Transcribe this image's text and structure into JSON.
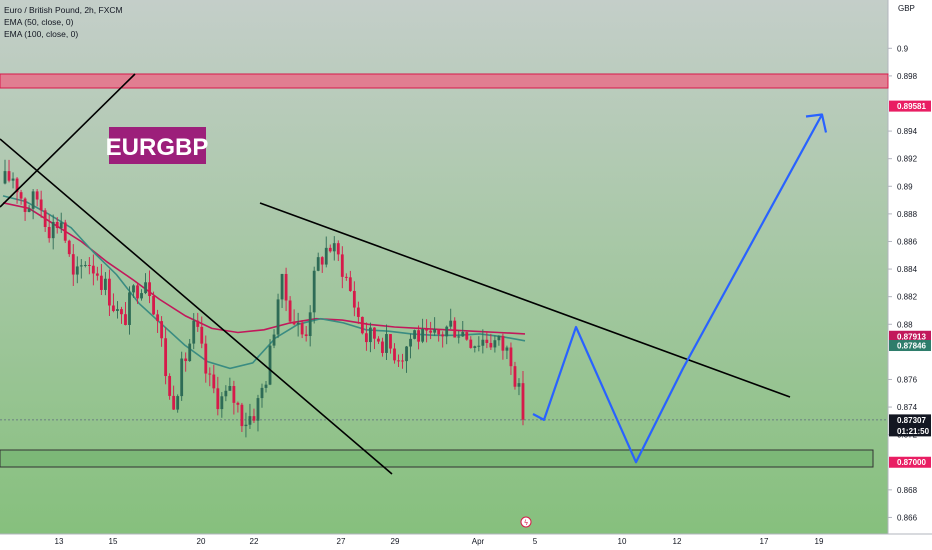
{
  "header": {
    "symbol": "Euro / British Pound, 2h, FXCM",
    "ema50": "EMA (50, close, 0)",
    "ema100": "EMA (100, close, 0)"
  },
  "watermark": "EURGBP",
  "colors": {
    "background_top": "#c4cec9",
    "background_bottom": "#86c07d",
    "up": "#2e6b56",
    "down": "#d61a4a",
    "ema50": "#3a8c82",
    "ema100": "#c2185b",
    "resistance_zone": "#e8708a",
    "projection": "#2962ff",
    "trendline": "#000000",
    "label_bg": "#9c1f7a"
  },
  "chart_data": {
    "type": "candlestick",
    "title": "Euro / British Pound, 2h, FXCM",
    "currency": "GBP",
    "ylim": [
      0.8648,
      0.9035
    ],
    "y_ticks": [
      0.9,
      0.898,
      0.894,
      0.892,
      0.89,
      0.888,
      0.886,
      0.884,
      0.882,
      0.88,
      0.876,
      0.874,
      0.872,
      0.868,
      0.866
    ],
    "x_ticks": [
      "13",
      "15",
      "20",
      "22",
      "27",
      "29",
      "Apr",
      "5",
      "10",
      "12",
      "17",
      "19"
    ],
    "price_path": [
      0.8902,
      0.8908,
      0.8885,
      0.8892,
      0.887,
      0.8876,
      0.883,
      0.8848,
      0.8838,
      0.882,
      0.88,
      0.8825,
      0.8836,
      0.88,
      0.874,
      0.877,
      0.88,
      0.876,
      0.8745,
      0.875,
      0.873,
      0.8738,
      0.8768,
      0.8832,
      0.8805,
      0.879,
      0.8842,
      0.8858,
      0.8845,
      0.8818,
      0.879,
      0.8792,
      0.8783,
      0.8778,
      0.8795,
      0.8787,
      0.8791,
      0.88,
      0.8795,
      0.8788,
      0.879,
      0.8786,
      0.8778,
      0.8735
    ],
    "ema50": [
      0.8893,
      0.8889,
      0.888,
      0.887,
      0.8852,
      0.8836,
      0.8815,
      0.88,
      0.8785,
      0.8773,
      0.8768,
      0.8772,
      0.879,
      0.88,
      0.8804,
      0.8801,
      0.8796,
      0.8795,
      0.8793,
      0.8792,
      0.8792,
      0.8793,
      0.8791,
      0.8788
    ],
    "ema100": [
      0.8888,
      0.8884,
      0.8872,
      0.886,
      0.8845,
      0.8832,
      0.8818,
      0.8806,
      0.8797,
      0.8794,
      0.8796,
      0.8801,
      0.8804,
      0.8803,
      0.88,
      0.8798,
      0.8797,
      0.8796,
      0.8795,
      0.8794,
      0.8793
    ],
    "levels": [
      {
        "price": 0.89581,
        "label": "0.89581",
        "color": "#e91e63",
        "kind": "resistance"
      },
      {
        "price": 0.87913,
        "label": "0.87913",
        "color": "#c2185b",
        "kind": "ema100"
      },
      {
        "price": 0.87846,
        "label": "0.87846",
        "color": "#2e7d6b",
        "kind": "ema50"
      },
      {
        "price": 0.87307,
        "label": "0.87307",
        "sublabel": "01:21:50",
        "color": "#131722",
        "kind": "last"
      },
      {
        "price": 0.87,
        "label": "0.87000",
        "color": "#e91e63",
        "kind": "support"
      }
    ],
    "projection_prices": [
      0.8735,
      0.87307,
      0.8798,
      0.87,
      0.8768,
      0.8952
    ]
  }
}
